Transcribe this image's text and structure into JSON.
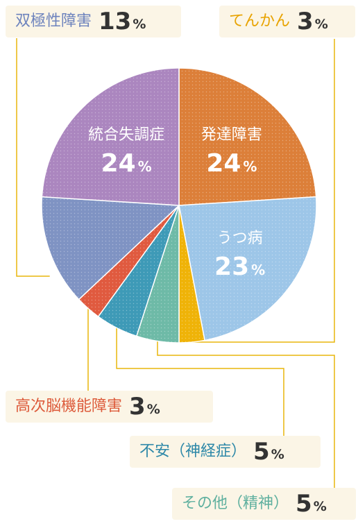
{
  "chart_data": {
    "type": "pie",
    "slices": [
      {
        "label": "発達障害",
        "value": 24,
        "pct_suffix": "%",
        "color": "#dc7f39",
        "inside": true
      },
      {
        "label": "うつ病",
        "value": 23,
        "pct_suffix": "%",
        "color": "#9dc6e8",
        "inside": true
      },
      {
        "label": "てんかん",
        "value": 3,
        "pct_suffix": "%",
        "color": "#efb308",
        "inside": false
      },
      {
        "label": "その他（精神）",
        "value": 5,
        "pct_suffix": "%",
        "color": "#6ebaa7",
        "inside": false
      },
      {
        "label": "不安（神経症）",
        "value": 5,
        "pct_suffix": "%",
        "color": "#3e9ab7",
        "inside": false
      },
      {
        "label": "高次脳機能障害",
        "value": 3,
        "pct_suffix": "%",
        "color": "#e05a3f",
        "inside": false
      },
      {
        "label": "双極性障害",
        "value": 13,
        "pct_suffix": "%",
        "color": "#7f93c3",
        "inside": false
      },
      {
        "label": "統合失調症",
        "value": 24,
        "pct_suffix": "%",
        "color": "#ab86bf",
        "inside": true
      }
    ],
    "label_colors": {
      "双極性障害": "#6d83bd",
      "てんかん": "#e8a300",
      "高次脳機能障害": "#dd5b3b",
      "不安（神経症）": "#2d88a8",
      "その他（精神）": "#5fb09f"
    },
    "leader_line_color": "#e8b60b"
  }
}
